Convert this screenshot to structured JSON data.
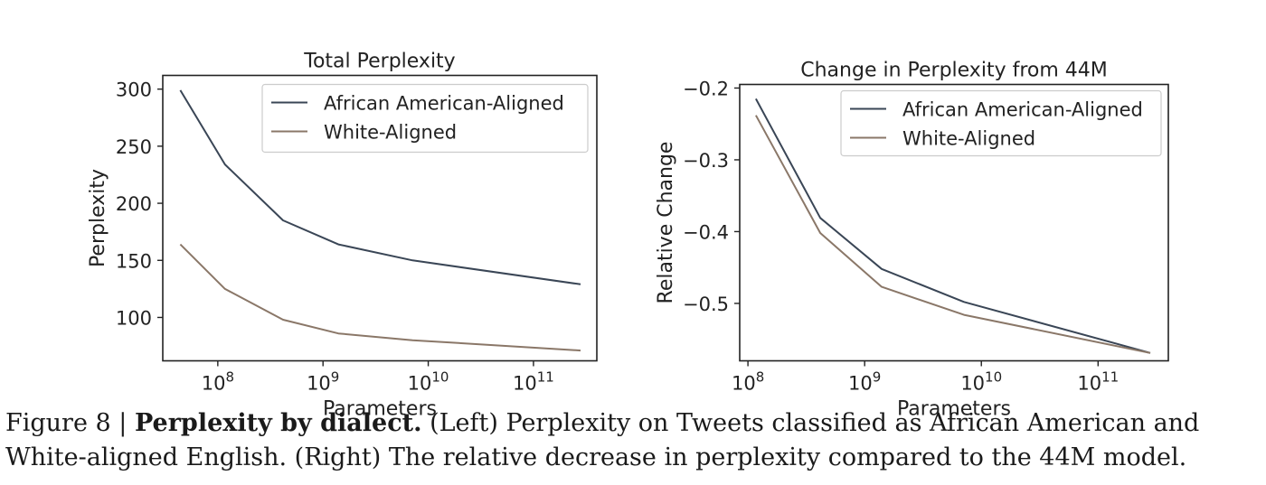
{
  "chart_data": [
    {
      "type": "line",
      "title": "Total Perplexity",
      "xlabel": "Parameters",
      "ylabel": "Perplexity",
      "x_scale": "log",
      "x": [
        44000000,
        117000000,
        417000000,
        1400000000,
        7100000000,
        280000000000
      ],
      "xlim": [
        30000000,
        400000000000
      ],
      "ylim": [
        62,
        312
      ],
      "xticks": [
        {
          "value": 100000000,
          "label": "10^8"
        },
        {
          "value": 1000000000,
          "label": "10^9"
        },
        {
          "value": 10000000000,
          "label": "10^10"
        },
        {
          "value": 100000000000,
          "label": "10^11"
        }
      ],
      "yticks": [
        100,
        150,
        200,
        250,
        300
      ],
      "legend_position": "top-right",
      "grid": false,
      "series": [
        {
          "name": "African American-Aligned",
          "color": "#3a4656",
          "values": [
            299,
            234,
            185,
            164,
            150,
            129
          ]
        },
        {
          "name": "White-Aligned",
          "color": "#8a7768",
          "values": [
            164,
            125,
            98,
            86,
            80,
            71
          ]
        }
      ]
    },
    {
      "type": "line",
      "title": "Change in Perplexity from 44M",
      "xlabel": "Parameters",
      "ylabel": "Relative Change",
      "x_scale": "log",
      "x": [
        117000000,
        417000000,
        1400000000,
        7100000000,
        280000000000
      ],
      "xlim": [
        85000000,
        400000000000
      ],
      "ylim": [
        -0.58,
        -0.195
      ],
      "xticks": [
        {
          "value": 100000000,
          "label": "10^8"
        },
        {
          "value": 1000000000,
          "label": "10^9"
        },
        {
          "value": 10000000000,
          "label": "10^10"
        },
        {
          "value": 100000000000,
          "label": "10^11"
        }
      ],
      "yticks": [
        -0.2,
        -0.3,
        -0.4,
        -0.5
      ],
      "legend_position": "top-right",
      "grid": false,
      "series": [
        {
          "name": "African American-Aligned",
          "color": "#3a4656",
          "values": [
            -0.215,
            -0.381,
            -0.452,
            -0.498,
            -0.569
          ]
        },
        {
          "name": "White-Aligned",
          "color": "#8a7768",
          "values": [
            -0.238,
            -0.402,
            -0.477,
            -0.516,
            -0.569
          ]
        }
      ]
    }
  ],
  "caption": {
    "label": "Figure 8 | ",
    "bold": "Perplexity by dialect.",
    "text": " (Left) Perplexity on Tweets classified as African American and White-aligned English. (Right) The relative decrease in perplexity compared to the 44M model."
  }
}
